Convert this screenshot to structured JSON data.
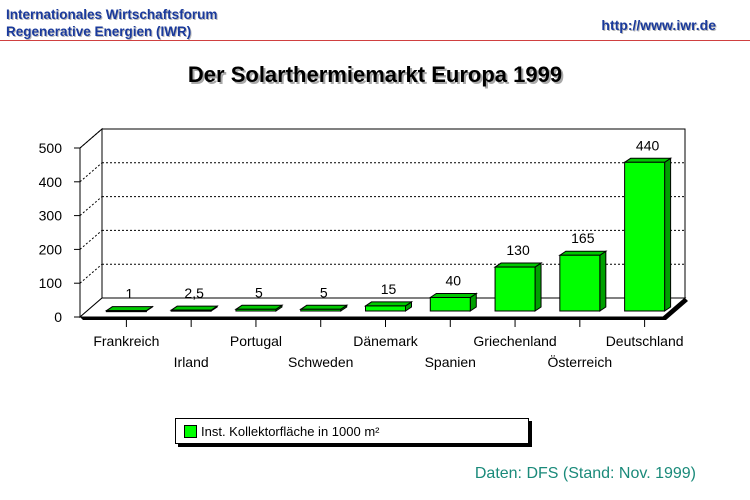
{
  "header": {
    "org_line1": "Internationales Wirtschaftsforum",
    "org_line2": "Regenerative Energien (IWR)",
    "url": "http://www.iwr.de"
  },
  "source_note": "Daten: DFS (Stand: Nov. 1999)",
  "colors": {
    "bar": "#00ff00",
    "header_text": "#1a3a9c",
    "rule": "#d04040",
    "source_text": "#1a8a7a"
  },
  "chart_data": {
    "type": "bar",
    "title": "Der Solarthermiemarkt Europa 1999",
    "categories": [
      "Frankreich",
      "Irland",
      "Portugal",
      "Schweden",
      "Dänemark",
      "Spanien",
      "Griechenland",
      "Österreich",
      "Deutschland"
    ],
    "values": [
      1,
      2.5,
      5,
      5,
      15,
      40,
      130,
      165,
      440
    ],
    "value_labels": [
      "1",
      "2,5",
      "5",
      "5",
      "15",
      "40",
      "130",
      "165",
      "440"
    ],
    "series": [
      {
        "name": "Inst. Kollektorfläche in 1000 m²",
        "values": [
          1,
          2.5,
          5,
          5,
          15,
          40,
          130,
          165,
          440
        ]
      }
    ],
    "yticks": [
      0,
      100,
      200,
      300,
      400,
      500
    ],
    "ylim": [
      0,
      500
    ],
    "xlabel": "",
    "ylabel": "",
    "grid": true,
    "legend_position": "bottom"
  }
}
